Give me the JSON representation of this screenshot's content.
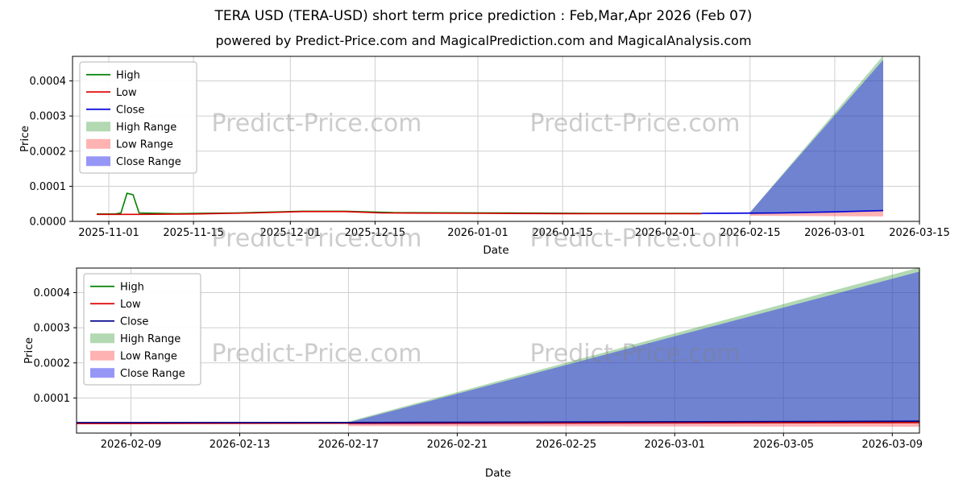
{
  "title": "TERA USD (TERA-USD) short term price prediction : Feb,Mar,Apr 2026 (Feb 07)",
  "subtitle": "powered by Predict-Price.com and MagicalPrediction.com and MagicalAnalysis.com",
  "watermark": {
    "text": "Predict-Price.com"
  },
  "chart_data": [
    {
      "type": "line",
      "name": "long-range-prediction-chart",
      "xlabel": "Date",
      "ylabel": "Price",
      "xlim": [
        "2025-10-26",
        "2026-03-15"
      ],
      "ylim": [
        0,
        0.00047
      ],
      "grid": true,
      "legend_position": "upper-left",
      "x_ticks": [
        "2025-11-01",
        "2025-11-15",
        "2025-12-01",
        "2025-12-15",
        "2026-01-01",
        "2026-01-15",
        "2026-02-01",
        "2026-02-15",
        "2026-03-01",
        "2026-03-15"
      ],
      "y_ticks": [
        {
          "v": 0.0,
          "label": "0.0000"
        },
        {
          "v": 0.0001,
          "label": "0.0001"
        },
        {
          "v": 0.0002,
          "label": "0.0002"
        },
        {
          "v": 0.0003,
          "label": "0.0003"
        },
        {
          "v": 0.0004,
          "label": "0.0004"
        }
      ],
      "legend": [
        {
          "label": "High",
          "type": "line",
          "color": "#008000"
        },
        {
          "label": "Low",
          "type": "line",
          "color": "#dd0000"
        },
        {
          "label": "Close",
          "type": "line",
          "color": "#0000dd"
        },
        {
          "label": "High Range",
          "type": "area",
          "color": "rgba(0,128,0,0.3)"
        },
        {
          "label": "Low Range",
          "type": "area",
          "color": "rgba(255,0,0,0.3)"
        },
        {
          "label": "Close Range",
          "type": "area",
          "color": "rgba(45,45,240,0.5)"
        }
      ],
      "series": [
        {
          "name": "high_range",
          "type": "area",
          "color": "rgba(0,128,0,0.3)",
          "lower": [
            [
              "2026-02-15",
              2e-05
            ],
            [
              "2026-03-09",
              2.8e-05
            ]
          ],
          "upper": [
            [
              "2026-02-15",
              2.6e-05
            ],
            [
              "2026-03-09",
              0.000472
            ]
          ]
        },
        {
          "name": "low_range",
          "type": "area",
          "color": "rgba(255,0,0,0.3)",
          "lower": [
            [
              "2026-02-15",
              1.6e-05
            ],
            [
              "2026-03-09",
              1.4e-05
            ]
          ],
          "upper": [
            [
              "2026-02-15",
              2.4e-05
            ],
            [
              "2026-03-09",
              3e-05
            ]
          ]
        },
        {
          "name": "close_range",
          "type": "area",
          "color": "rgba(45,45,240,0.5)",
          "lower": [
            [
              "2026-02-07",
              2.1e-05
            ],
            [
              "2026-02-15",
              2.1e-05
            ],
            [
              "2026-03-09",
              2.9e-05
            ]
          ],
          "upper": [
            [
              "2026-02-07",
              2.4e-05
            ],
            [
              "2026-02-15",
              2.6e-05
            ],
            [
              "2026-03-09",
              0.00046
            ]
          ]
        },
        {
          "name": "high",
          "type": "line",
          "color": "#008000",
          "points": [
            [
              "2025-10-30",
              2.1e-05
            ],
            [
              "2025-11-02",
              2.1e-05
            ],
            [
              "2025-11-03",
              2.4e-05
            ],
            [
              "2025-11-04",
              8e-05
            ],
            [
              "2025-11-05",
              7.6e-05
            ],
            [
              "2025-11-06",
              2.4e-05
            ],
            [
              "2025-11-12",
              2.2e-05
            ],
            [
              "2025-11-22",
              2.4e-05
            ],
            [
              "2025-12-03",
              2.9e-05
            ],
            [
              "2025-12-10",
              2.9e-05
            ],
            [
              "2025-12-18",
              2.5e-05
            ],
            [
              "2026-01-05",
              2.4e-05
            ],
            [
              "2026-01-20",
              2.3e-05
            ],
            [
              "2026-02-07",
              2.3e-05
            ]
          ]
        },
        {
          "name": "low",
          "type": "line",
          "color": "#dd0000",
          "points": [
            [
              "2025-10-30",
              2e-05
            ],
            [
              "2025-11-06",
              2e-05
            ],
            [
              "2025-11-15",
              2.1e-05
            ],
            [
              "2025-11-25",
              2.4e-05
            ],
            [
              "2025-12-03",
              2.8e-05
            ],
            [
              "2025-12-10",
              2.8e-05
            ],
            [
              "2025-12-16",
              2.4e-05
            ],
            [
              "2026-01-01",
              2.3e-05
            ],
            [
              "2026-01-15",
              2.2e-05
            ],
            [
              "2026-02-01",
              2.2e-05
            ],
            [
              "2026-02-07",
              2.2e-05
            ]
          ]
        },
        {
          "name": "close",
          "type": "line",
          "color": "#0000dd",
          "points": [
            [
              "2026-02-07",
              2.3e-05
            ],
            [
              "2026-02-20",
              2.4e-05
            ],
            [
              "2026-03-01",
              2.7e-05
            ],
            [
              "2026-03-09",
              3.1e-05
            ]
          ]
        }
      ]
    },
    {
      "type": "line",
      "name": "short-range-forecast-chart",
      "xlabel": "Date",
      "ylabel": "Price",
      "xlim": [
        "2026-02-07",
        "2026-03-10"
      ],
      "ylim": [
        0,
        0.00047
      ],
      "grid": true,
      "legend_position": "upper-left",
      "x_ticks": [
        "2026-02-09",
        "2026-02-13",
        "2026-02-17",
        "2026-02-21",
        "2026-02-25",
        "2026-03-01",
        "2026-03-05",
        "2026-03-09"
      ],
      "y_ticks": [
        {
          "v": 0.0001,
          "label": "0.0001"
        },
        {
          "v": 0.0002,
          "label": "0.0002"
        },
        {
          "v": 0.0003,
          "label": "0.0003"
        },
        {
          "v": 0.0004,
          "label": "0.0004"
        }
      ],
      "legend": [
        {
          "label": "High",
          "type": "line",
          "color": "#008000"
        },
        {
          "label": "Low",
          "type": "line",
          "color": "#dd0000"
        },
        {
          "label": "Close",
          "type": "line",
          "color": "#00008b"
        },
        {
          "label": "High Range",
          "type": "area",
          "color": "rgba(0,128,0,0.3)"
        },
        {
          "label": "Low Range",
          "type": "area",
          "color": "rgba(255,0,0,0.3)"
        },
        {
          "label": "Close Range",
          "type": "area",
          "color": "rgba(45,45,240,0.5)"
        }
      ],
      "series": [
        {
          "name": "high_range",
          "type": "area",
          "color": "rgba(0,128,0,0.3)",
          "lower": [
            [
              "2026-02-17",
              2.6e-05
            ],
            [
              "2026-03-10",
              3e-05
            ]
          ],
          "upper": [
            [
              "2026-02-17",
              3.3e-05
            ],
            [
              "2026-03-10",
              0.000472
            ]
          ]
        },
        {
          "name": "low_range",
          "type": "area",
          "color": "rgba(255,0,0,0.3)",
          "lower": [
            [
              "2026-02-17",
              2e-05
            ],
            [
              "2026-03-10",
              1.8e-05
            ]
          ],
          "upper": [
            [
              "2026-02-17",
              2.8e-05
            ],
            [
              "2026-03-10",
              3.2e-05
            ]
          ]
        },
        {
          "name": "close_range",
          "type": "area",
          "color": "rgba(45,45,240,0.5)",
          "lower": [
            [
              "2026-02-17",
              2.5e-05
            ],
            [
              "2026-03-10",
              2.8e-05
            ]
          ],
          "upper": [
            [
              "2026-02-17",
              3e-05
            ],
            [
              "2026-03-10",
              0.00046
            ]
          ]
        },
        {
          "name": "high",
          "type": "line",
          "color": "#008000",
          "points": [
            [
              "2026-02-07",
              2.9e-05
            ],
            [
              "2026-03-10",
              3.2e-05
            ]
          ]
        },
        {
          "name": "low",
          "type": "line",
          "color": "#dd0000",
          "points": [
            [
              "2026-02-07",
              2.7e-05
            ],
            [
              "2026-03-10",
              3e-05
            ]
          ]
        },
        {
          "name": "close",
          "type": "line",
          "color": "#00008b",
          "points": [
            [
              "2026-02-07",
              3e-05
            ],
            [
              "2026-02-17",
              3e-05
            ],
            [
              "2026-03-10",
              3.4e-05
            ]
          ]
        }
      ]
    }
  ]
}
